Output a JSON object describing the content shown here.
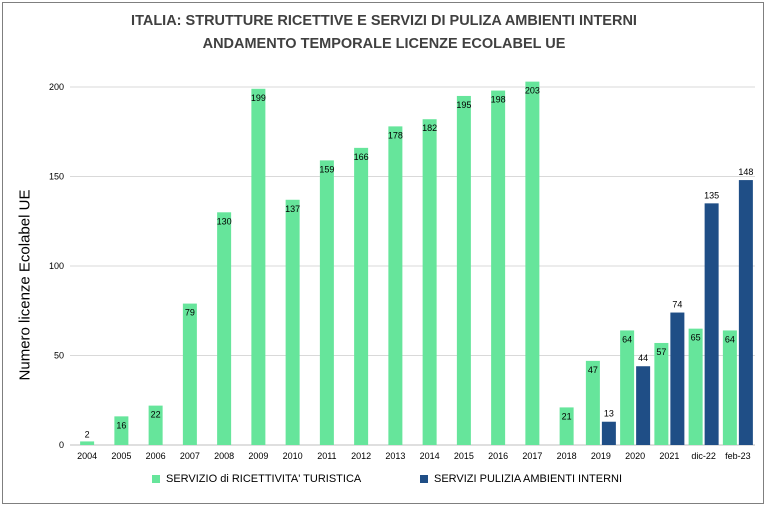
{
  "chart_data": {
    "type": "bar",
    "title": "ITALIA:  STRUTTURE RICETTIVE E SERVIZI DI PULIZA AMBIENTI INTERNI",
    "subtitle": "ANDAMENTO TEMPORALE LICENZE ECOLABEL UE",
    "xlabel": "",
    "ylabel": "Numero licenze Ecolabel UE",
    "ylim": [
      0,
      200
    ],
    "yticks": [
      "0",
      "50",
      "100",
      "150",
      "200"
    ],
    "grid": true,
    "legend_position": "bottom",
    "categories": [
      "2004",
      "2005",
      "2006",
      "2007",
      "2008",
      "2009",
      "2010",
      "2011",
      "2012",
      "2013",
      "2014",
      "2015",
      "2016",
      "2017",
      "2018",
      "2019",
      "2020",
      "2021",
      "dic-22",
      "feb-23"
    ],
    "series": [
      {
        "name": "SERVIZIO di RICETTIVITA' TURISTICA",
        "color": "#66e59b",
        "values": [
          2,
          16,
          22,
          79,
          130,
          199,
          137,
          159,
          166,
          178,
          182,
          195,
          198,
          203,
          21,
          47,
          64,
          57,
          65,
          64
        ]
      },
      {
        "name": "SERVIZI PULIZIA AMBIENTI INTERNI",
        "color": "#1f4e86",
        "values": [
          null,
          null,
          null,
          null,
          null,
          null,
          null,
          null,
          null,
          null,
          null,
          null,
          null,
          null,
          null,
          13,
          44,
          74,
          135,
          148
        ]
      }
    ],
    "data_labels": {
      "green": [
        "2",
        "16",
        "22",
        "79",
        "130",
        "199",
        "137",
        "159",
        "166",
        "178",
        "182",
        "195",
        "198",
        "203",
        "21",
        "47",
        "64",
        "57",
        "65",
        "64"
      ],
      "blue": [
        "",
        "",
        "",
        "",
        "",
        "",
        "",
        "",
        "",
        "",
        "",
        "",
        "",
        "",
        "",
        "13",
        "44",
        "74",
        "135",
        "148"
      ]
    }
  }
}
